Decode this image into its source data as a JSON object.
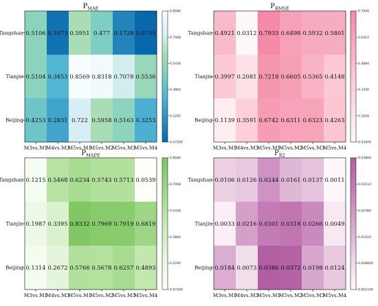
{
  "colors": {
    "mae": [
      "#0868ac",
      "#2b8cbe",
      "#4eb3d3",
      "#7bccc4",
      "#a8ddb5",
      "#d9f0f7",
      "#f7fcfd"
    ],
    "rmse": [
      "#fff7f9",
      "#fde0e6",
      "#fbc8d4",
      "#f7a9bd",
      "#f48aa6"
    ],
    "mape": [
      "#fbfff8",
      "#e5f5dc",
      "#c7e9b4",
      "#a1d98a",
      "#7cc55f"
    ],
    "r2": [
      "#fff7fb",
      "#ecd2e4",
      "#d7a6cd",
      "#c67fb8",
      "#b25ea3"
    ]
  },
  "chart_data": [
    {
      "type": "heatmap",
      "title": "P",
      "title_sub": "MAE",
      "x_categories": [
        "M3vs.M1",
        "M4vs.M3",
        "M5vs.M1",
        "M5vs.M2",
        "M5vs.M3",
        "M5vs.M4"
      ],
      "y_categories": [
        "Tangshan",
        "Tianjin",
        "Beijing"
      ],
      "values": [
        [
          0.5106,
          0.1073,
          0.5951,
          0.477,
          0.1728,
          0.0735
        ],
        [
          0.5104,
          0.3453,
          0.8569,
          0.8318,
          0.7078,
          0.5536
        ],
        [
          0.4253,
          0.2831,
          0.722,
          0.5958,
          0.5163,
          0.3253
        ]
      ],
      "labels": [
        [
          "0.5106",
          "0.1073",
          "0.5951",
          "0.477",
          "0.1728",
          "0.0735"
        ],
        [
          "0.5104",
          "0.3453",
          "0.8569",
          "0.8318",
          "0.7078",
          "0.5536"
        ],
        [
          "0.4253",
          "0.2831",
          "0.722",
          "0.5958",
          "0.5163",
          "0.3253"
        ]
      ],
      "colorbar": {
        "min": 0.072,
        "max": 0.858,
        "ticks": [
          "0.8580",
          "0.7008",
          "0.5436",
          "0.3864",
          "0.2292",
          "0.07200"
        ]
      },
      "cmap": "mae"
    },
    {
      "type": "heatmap",
      "title": "P",
      "title_sub": "RMSE",
      "x_categories": [
        "M3vs.M1",
        "M4vs.M3",
        "M5vs.M1",
        "M5vs.M2",
        "M5vs.M3",
        "M5vs.M4"
      ],
      "y_categories": [
        "Tangshan",
        "Tianjin",
        "Beijing"
      ],
      "values": [
        [
          0.4921,
          0.0312,
          0.7933,
          0.6498,
          0.5932,
          0.5801
        ],
        [
          0.3997,
          0.2081,
          0.7218,
          0.6605,
          0.5365,
          0.4148
        ],
        [
          0.1139,
          0.3591,
          0.6742,
          0.6311,
          0.6323,
          0.4263
        ]
      ],
      "labels": [
        [
          "0.4921",
          "0.0312",
          "0.7933",
          "0.6498",
          "0.5932",
          "0.5801"
        ],
        [
          "0.3997",
          "0.2081",
          "0.7218",
          "0.6605",
          "0.5365",
          "0.4148"
        ],
        [
          "0.1139",
          "0.3591",
          "0.6742",
          "0.6311",
          "0.6323",
          "0.4263"
        ]
      ],
      "colorbar": {
        "min": 0.03,
        "max": 0.794,
        "ticks": [
          "0.7940",
          "0.6412",
          "0.4884",
          "0.3356",
          "0.1828",
          "0.03000"
        ]
      },
      "cmap": "rmse"
    },
    {
      "type": "heatmap",
      "title": "P",
      "title_sub": "MAPE",
      "x_categories": [
        "M3vs.M1",
        "M4vs.M3",
        "M5vs.M1",
        "M5vs.M2",
        "M5vs.M3",
        "M5vs.M4"
      ],
      "y_categories": [
        "Tangshan",
        "Tianjin",
        "Beijing"
      ],
      "values": [
        [
          0.1215,
          0.5468,
          0.6234,
          0.5743,
          0.5713,
          0.0539
        ],
        [
          0.1987,
          0.3395,
          0.8332,
          0.7969,
          0.7919,
          0.6819
        ],
        [
          0.1314,
          0.2672,
          0.5766,
          0.5678,
          0.6257,
          0.4893
        ]
      ],
      "labels": [
        [
          "0.1215",
          "0.5468",
          "0.6234",
          "0.5743",
          "0.5713",
          "0.0539"
        ],
        [
          "0.1987",
          "0.3395",
          "0.8332",
          "0.7969",
          "0.7919",
          "0.6819"
        ],
        [
          "0.1314",
          "0.2672",
          "0.5766",
          "0.5678",
          "0.6257",
          "0.4893"
        ]
      ],
      "colorbar": {
        "min": 0.072,
        "max": 0.858,
        "ticks": [
          "0.8580",
          "0.7008",
          "0.5436",
          "0.3864",
          "0.2292",
          "0.07200"
        ]
      },
      "cmap": "mape"
    },
    {
      "type": "heatmap",
      "title": "P",
      "title_sub": "R2",
      "x_categories": [
        "M3vs.M1",
        "M4vs.M3",
        "M5vs.M1",
        "M5vs.M2",
        "M5vs.M3",
        "M5vs.M4"
      ],
      "y_categories": [
        "Tangshan",
        "Tianjin",
        "Beijing"
      ],
      "values": [
        [
          0.0106,
          0.0126,
          0.0244,
          0.0161,
          0.0137,
          0.0011
        ],
        [
          0.0033,
          0.0216,
          0.0301,
          0.0318,
          0.0266,
          0.0049
        ],
        [
          0.0184,
          0.0073,
          0.0386,
          0.0372,
          0.0198,
          0.0124
        ]
      ],
      "labels": [
        [
          "0.0106",
          "0.0126",
          "0.0244",
          "0.0161",
          "0.0137",
          "0.0011"
        ],
        [
          "0.0033",
          "0.0216",
          "0.0301",
          "0.0318",
          "0.0266",
          "0.0049"
        ],
        [
          "0.0184",
          "0.0073",
          "0.0386",
          "0.0372",
          "0.0198",
          "0.0124"
        ]
      ],
      "colorbar": {
        "min": 0.0011,
        "max": 0.0386,
        "ticks": [
          "0.03860",
          "0.03110",
          "0.02360",
          "0.01610",
          "0.008600",
          "0.001100"
        ]
      },
      "cmap": "r2"
    }
  ]
}
